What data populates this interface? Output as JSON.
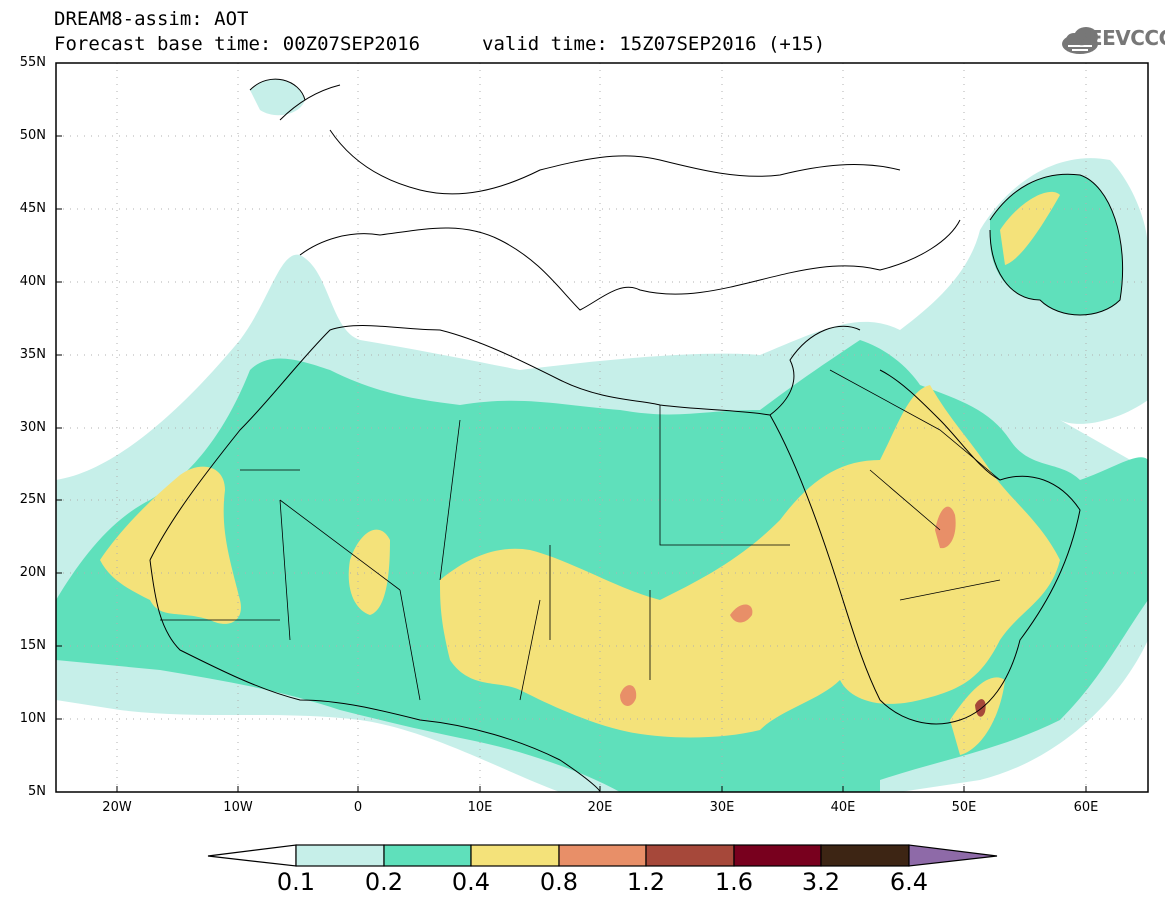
{
  "header": {
    "title": "DREAM8-assim: AOT",
    "base_time": "Forecast base time: 00Z07SEP2016",
    "valid_time": "valid time: 15Z07SEP2016 (+15)",
    "logo_text": "SEEVCCC"
  },
  "axes": {
    "lat_labels": [
      "55N",
      "50N",
      "45N",
      "40N",
      "35N",
      "30N",
      "25N",
      "20N",
      "15N",
      "10N",
      "5N"
    ],
    "lon_labels": [
      "20W",
      "10W",
      "0",
      "10E",
      "20E",
      "30E",
      "40E",
      "50E",
      "60E"
    ]
  },
  "colorbar": {
    "labels": [
      "0.1",
      "0.2",
      "0.4",
      "0.8",
      "1.2",
      "1.6",
      "3.2",
      "6.4"
    ],
    "colors": [
      "#ffffff",
      "#c6efe9",
      "#5fe0bb",
      "#f4e27a",
      "#e88f68",
      "#a6483a",
      "#78001e",
      "#3d2514",
      "#8e6aa8"
    ]
  },
  "icons": {
    "logo": "cloud-logo-icon"
  }
}
